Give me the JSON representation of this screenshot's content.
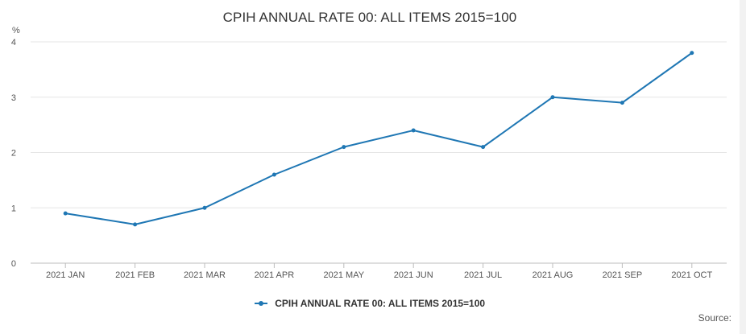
{
  "chart_data": {
    "type": "line",
    "title": "CPIH ANNUAL RATE 00: ALL ITEMS 2015=100",
    "ylabel": "%",
    "xlabel": "",
    "categories": [
      "2021 JAN",
      "2021 FEB",
      "2021 MAR",
      "2021 APR",
      "2021 MAY",
      "2021 JUN",
      "2021 JUL",
      "2021 AUG",
      "2021 SEP",
      "2021 OCT"
    ],
    "series": [
      {
        "name": "CPIH ANNUAL RATE 00: ALL ITEMS 2015=100",
        "values": [
          0.9,
          0.7,
          1.0,
          1.6,
          2.1,
          2.4,
          2.1,
          3.0,
          2.9,
          3.8
        ],
        "color": "#1f77b4"
      }
    ],
    "ylim": [
      0,
      4
    ],
    "yticks": [
      "0",
      "1",
      "2",
      "3",
      "4"
    ],
    "grid": true,
    "legend": "bottom-center"
  },
  "source_label": "Source:"
}
